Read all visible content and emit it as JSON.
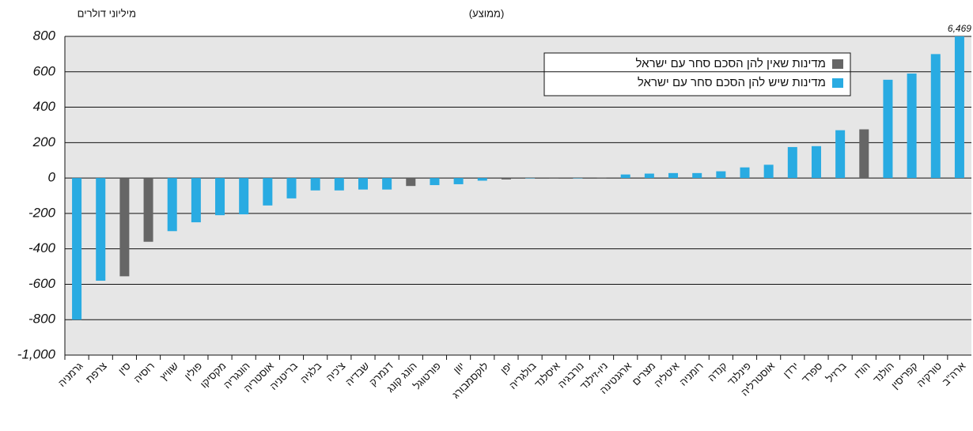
{
  "chart_data": {
    "type": "bar",
    "unit_label": "מיליוני דולרים",
    "subtitle": "(ממוצע)",
    "categories": [
      "גרמניה",
      "צרפת",
      "סין",
      "רוסיה",
      "שוויץ",
      "פולין",
      "מקסיקו",
      "הונגריה",
      "אוסטריה",
      "בריטניה",
      "בלגיה",
      "צ'כיה",
      "שבדיה",
      "דנמרק",
      "הונג קונג",
      "פורטוגל",
      "יוון",
      "לוקסמבורג",
      "יפן",
      "בולגריה",
      "איסלנד",
      "נורבגיה",
      "ניו-זילנד",
      "ארגנטינה",
      "מצרים",
      "איטליה",
      "רומניה",
      "קנדה",
      "פינלנד",
      "אוסטרליה",
      "ירדן",
      "ספרד",
      "ברזיל",
      "הודו",
      "הולנד",
      "קפריסין",
      "טורקיה",
      "ארה\"ב"
    ],
    "series": [
      {
        "name": "מדינות שאין להן הסכם סחר עם ישראל",
        "color": "#666666",
        "values": [
          null,
          null,
          -555,
          -360,
          null,
          null,
          null,
          null,
          null,
          null,
          null,
          null,
          null,
          null,
          -45,
          null,
          null,
          null,
          -8,
          null,
          -3,
          null,
          3,
          null,
          null,
          null,
          null,
          null,
          null,
          null,
          null,
          null,
          null,
          275,
          null,
          null,
          null,
          null
        ]
      },
      {
        "name": "מדינות שיש להן הסכם סחר עם ישראל",
        "color": "#29abe2",
        "values": [
          -800,
          -580,
          null,
          null,
          -300,
          -250,
          -210,
          -205,
          -155,
          -115,
          -70,
          -70,
          -65,
          -65,
          null,
          -40,
          -35,
          -15,
          null,
          -2,
          null,
          -2,
          null,
          20,
          25,
          28,
          28,
          38,
          60,
          75,
          175,
          180,
          270,
          null,
          555,
          590,
          700,
          6469
        ],
        "value_labels": [
          null,
          null,
          null,
          null,
          null,
          null,
          null,
          null,
          null,
          null,
          null,
          null,
          null,
          null,
          null,
          null,
          null,
          null,
          null,
          null,
          null,
          null,
          null,
          null,
          null,
          null,
          null,
          null,
          null,
          null,
          null,
          null,
          null,
          null,
          null,
          null,
          null,
          "6,469"
        ]
      }
    ],
    "ylim": [
      -1000,
      800
    ],
    "yticks": [
      {
        "value": -1000,
        "label": "-1,000"
      },
      -800,
      -600,
      -400,
      -200,
      0,
      200,
      400,
      600,
      800
    ],
    "grid": true
  }
}
